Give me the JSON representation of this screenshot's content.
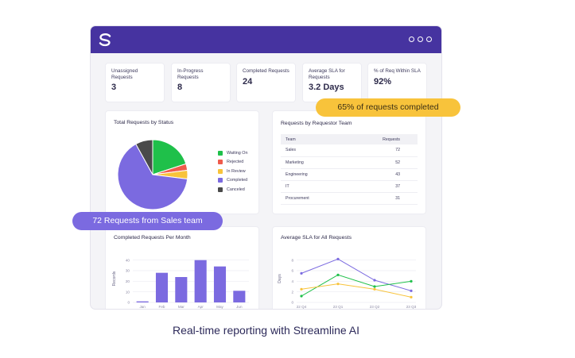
{
  "kpis": [
    {
      "label": "Unassigned Requests",
      "value": "3"
    },
    {
      "label": "In-Progress Requests",
      "value": "8"
    },
    {
      "label": "Completed Requests",
      "value": "24"
    },
    {
      "label": "Average SLA for Requests",
      "value": "3.2 Days"
    },
    {
      "label": "% of Req Within SLA",
      "value": "92%"
    }
  ],
  "callouts": {
    "completed": "65% of requests completed",
    "sales": "72 Requests from Sales team"
  },
  "team_table": {
    "columns": [
      "Team",
      "Requests"
    ],
    "rows": [
      {
        "team": "Sales",
        "requests": "72"
      },
      {
        "team": "Marketing",
        "requests": "52"
      },
      {
        "team": "Engineering",
        "requests": "43"
      },
      {
        "team": "IT",
        "requests": "37"
      },
      {
        "team": "Procurement",
        "requests": "31"
      }
    ]
  },
  "caption": "Real-time reporting with Streamline AI",
  "colors": {
    "titlebar": "#4633a0",
    "accent": "#7b6ae0",
    "yellow": "#f8c33b",
    "green": "#1fc04a",
    "red": "#ef5b4c",
    "dark": "#4a4a4a"
  },
  "chart_data": [
    {
      "type": "pie",
      "title": "Total Requests by Status",
      "categories": [
        "Waiting On",
        "Rejected",
        "In Review",
        "Completed",
        "Canceled"
      ],
      "values": [
        20,
        3,
        4,
        65,
        8
      ],
      "colors": [
        "#1fc04a",
        "#ef5b4c",
        "#f8c33b",
        "#7b6ae0",
        "#4a4a4a"
      ],
      "legend": "right"
    },
    {
      "type": "bar",
      "title": "Completed Requests Per Month",
      "categories": [
        "Jan",
        "Feb",
        "Mar",
        "Apr",
        "May",
        "Jun"
      ],
      "values": [
        1,
        28,
        24,
        40,
        34,
        11
      ],
      "ylabel": "Records",
      "yticks": [
        "0",
        "10",
        "20",
        "30",
        "40"
      ],
      "ylim": [
        0,
        45
      ],
      "color": "#7b6ae0"
    },
    {
      "type": "line",
      "title": "Average SLA for All Requests",
      "categories": [
        "22 Q4",
        "23 Q1",
        "23 Q2",
        "23 Q3"
      ],
      "ylabel": "Days",
      "yticks": [
        "0",
        "2",
        "4",
        "6",
        "8"
      ],
      "ylim": [
        0,
        9
      ],
      "series": [
        {
          "values": [
            5.5,
            8.2,
            4.2,
            2.2
          ],
          "color": "#7b6ae0"
        },
        {
          "values": [
            1.2,
            5.2,
            3.0,
            4.0
          ],
          "color": "#1fc04a"
        },
        {
          "values": [
            2.5,
            3.5,
            2.5,
            1.0
          ],
          "color": "#f8c33b"
        }
      ]
    }
  ]
}
